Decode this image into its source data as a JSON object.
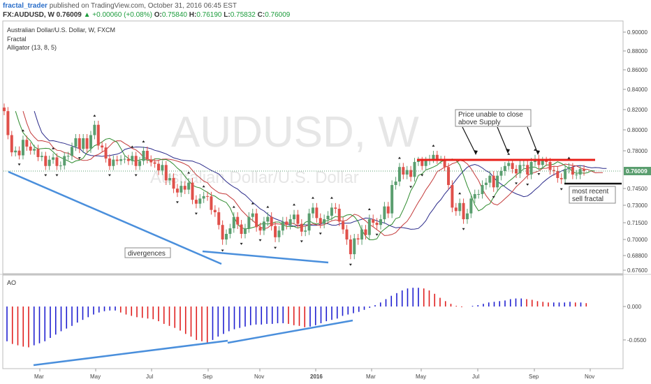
{
  "header": {
    "user": "fractal_trader",
    "published_text": "published on TradingView.com, October 31, 2016 06:45 EST",
    "symbol": "FX:AUDUSD, W",
    "last": "0.76009",
    "change": "+0.00060 (+0.08%)",
    "o_label": "O:",
    "o_value": "0.75840",
    "h_label": "H:",
    "h_value": "0.76190",
    "l_label": "L:",
    "l_value": "0.75832",
    "c_label": "C:",
    "c_value": "0.76009"
  },
  "legend": {
    "title": "Australian Dollar/U.S. Dollar, W, FXCM",
    "line2": "Fractal",
    "line3": "Alligator (13, 8, 5)"
  },
  "watermark": {
    "big": "AUDUSD, W",
    "small": "Australian Dollar/U.S. Dollar"
  },
  "annotations": {
    "supply_note_line1": "Price unable to close",
    "supply_note_line2": "above Supply",
    "divergences": "divergences",
    "sell_fractal_line1": "most recent",
    "sell_fractal_line2": "sell fractal"
  },
  "price_badge": "0.76009",
  "colors": {
    "up": "#5a9e6f",
    "down": "#e0504a",
    "jaw": "#2b2b8a",
    "teeth": "#c43a3a",
    "lips": "#2e8b2e",
    "trend": "#4a8fdc",
    "supply": "#e8201a",
    "ao_up": "#1f1fd0",
    "ao_down": "#e02020",
    "badge": "#5a9e6f"
  },
  "chart_data": [
    {
      "type": "candlestick",
      "title": "Australian Dollar/U.S. Dollar, W, FXCM",
      "y_ticks": [
        0.9,
        0.88,
        0.86,
        0.84,
        0.82,
        0.8,
        0.78,
        0.745,
        0.73,
        0.715,
        0.7,
        0.688,
        0.676
      ],
      "y_tick_labels": [
        "0.90000",
        "0.88000",
        "0.86000",
        "0.84000",
        "0.82000",
        "0.80000",
        "0.78000",
        "0.74500",
        "0.73000",
        "0.71500",
        "0.70000",
        "0.68800",
        "0.67600"
      ],
      "x_labels": [
        "Mar",
        "May",
        "Jul",
        "Sep",
        "Nov",
        "2016",
        "Mar",
        "May",
        "Jul",
        "Sep",
        "Nov"
      ],
      "candles_close": [
        0.8185,
        0.795,
        0.7785,
        0.7802,
        0.7755,
        0.7905,
        0.784,
        0.7802,
        0.7818,
        0.7738,
        0.775,
        0.765,
        0.7712,
        0.7735,
        0.765,
        0.7655,
        0.7748,
        0.775,
        0.7838,
        0.792,
        0.7818,
        0.792,
        0.782,
        0.795,
        0.805,
        0.785,
        0.7832,
        0.7724,
        0.765,
        0.7713,
        0.77,
        0.7717,
        0.772,
        0.77,
        0.775,
        0.765,
        0.77,
        0.78,
        0.7715,
        0.7686,
        0.7672,
        0.7606,
        0.766,
        0.752,
        0.754,
        0.7449,
        0.7414,
        0.7473,
        0.744,
        0.75,
        0.7349,
        0.7314,
        0.736,
        0.7382,
        0.738,
        0.726,
        0.724,
        0.713,
        0.7,
        0.705,
        0.71,
        0.72,
        0.7134,
        0.705,
        0.71,
        0.72,
        0.723,
        0.711,
        0.708,
        0.716,
        0.72,
        0.712,
        0.702,
        0.708,
        0.716,
        0.713,
        0.718,
        0.722,
        0.714,
        0.707,
        0.708,
        0.723,
        0.728,
        0.719,
        0.714,
        0.718,
        0.721,
        0.728,
        0.727,
        0.716,
        0.709,
        0.7,
        0.689,
        0.701,
        0.7,
        0.709,
        0.704,
        0.718,
        0.715,
        0.713,
        0.718,
        0.729,
        0.723,
        0.748,
        0.751,
        0.764,
        0.757,
        0.761,
        0.755,
        0.769,
        0.77,
        0.765,
        0.77,
        0.772,
        0.776,
        0.771,
        0.771,
        0.764,
        0.748,
        0.728,
        0.725,
        0.732,
        0.718,
        0.723,
        0.736,
        0.74,
        0.74,
        0.748,
        0.75,
        0.756,
        0.746,
        0.756,
        0.76,
        0.765,
        0.768,
        0.762,
        0.758,
        0.766,
        0.766,
        0.757,
        0.769,
        0.772,
        0.766,
        0.77,
        0.769,
        0.761,
        0.76,
        0.754,
        0.753,
        0.762,
        0.764,
        0.757,
        0.757,
        0.762,
        0.7601
      ],
      "fractal_up_count": 12,
      "fractal_down_count": 12,
      "current_price": 0.76009
    },
    {
      "type": "bar",
      "title": "AO",
      "y_ticks": [
        0.0,
        -0.05
      ],
      "y_tick_labels": [
        "0.000",
        "-0.0500"
      ],
      "values": [
        -0.052,
        -0.056,
        -0.058,
        -0.06,
        -0.061,
        -0.058,
        -0.055,
        -0.052,
        -0.047,
        -0.042,
        -0.037,
        -0.033,
        -0.029,
        -0.024,
        -0.02,
        -0.016,
        -0.012,
        -0.009,
        -0.007,
        -0.006,
        -0.006,
        -0.009,
        -0.012,
        -0.014,
        -0.016,
        -0.017,
        -0.018,
        -0.019,
        -0.022,
        -0.026,
        -0.029,
        -0.032,
        -0.036,
        -0.041,
        -0.045,
        -0.05,
        -0.052,
        -0.055,
        -0.05,
        -0.045,
        -0.041,
        -0.037,
        -0.034,
        -0.032,
        -0.03,
        -0.028,
        -0.027,
        -0.027,
        -0.026,
        -0.026,
        -0.025,
        -0.025,
        -0.026,
        -0.028,
        -0.029,
        -0.031,
        -0.03,
        -0.028,
        -0.025,
        -0.022,
        -0.02,
        -0.018,
        -0.014,
        -0.012,
        -0.01,
        -0.008,
        -0.005,
        -0.002,
        0.002,
        0.006,
        0.011,
        0.016,
        0.02,
        0.024,
        0.027,
        0.028,
        0.028,
        0.027,
        0.024,
        0.019,
        0.013,
        0.008,
        0.004,
        0.001,
        -0.001,
        0.0,
        0.001,
        0.002,
        0.004,
        0.006,
        0.007,
        0.008,
        0.009,
        0.011,
        0.012,
        0.012,
        0.011,
        0.01,
        0.008,
        0.007,
        0.006,
        0.006,
        0.006,
        0.006,
        0.007,
        0.006,
        0.006,
        0.005
      ],
      "colors_rule": "blue if value increased from previous bar, red if decreased"
    }
  ]
}
